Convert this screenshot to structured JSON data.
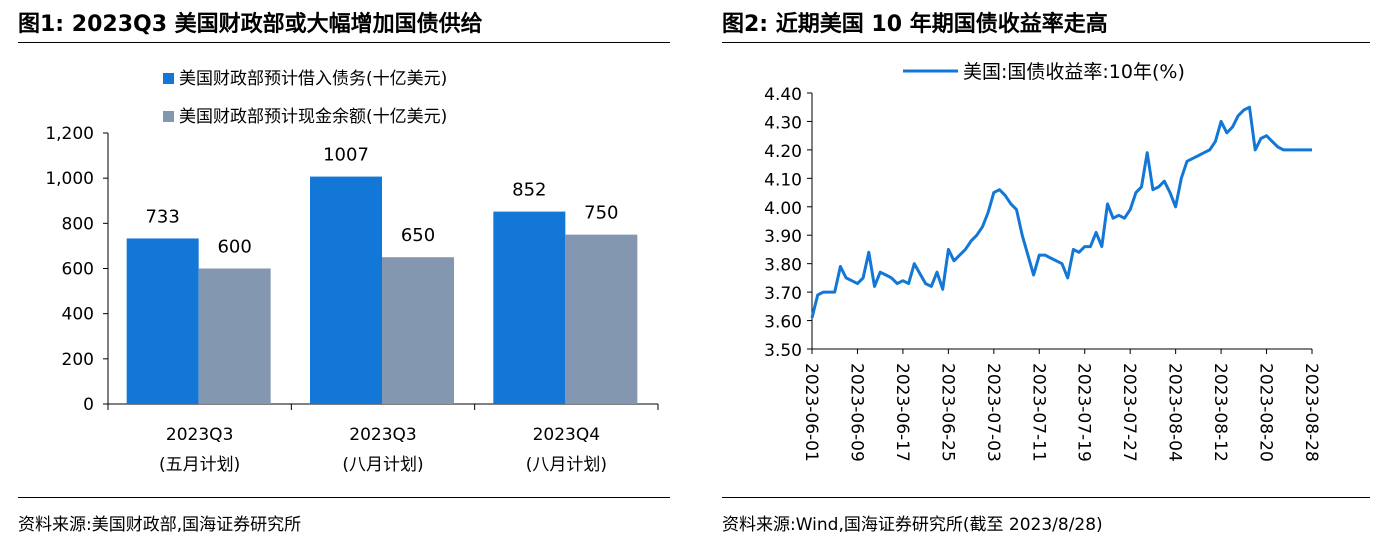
{
  "left": {
    "title": "图1:  2023Q3 美国财政部或大幅增加国债供给",
    "source": "资料来源:美国财政部,国海证券研究所"
  },
  "right": {
    "title": "图2:  近期美国 10 年期国债收益率走高",
    "source": "资料来源:Wind,国海证券研究所(截至 2023/8/28)"
  },
  "colors": {
    "series_a": "#1277D7",
    "series_b": "#8497B0",
    "line": "#1277D7"
  },
  "chart_data": [
    {
      "type": "bar",
      "title": "2023Q3 美国财政部或大幅增加国债供给",
      "categories": [
        {
          "line1": "2023Q3",
          "line2": "(五月计划)"
        },
        {
          "line1": "2023Q3",
          "line2": "(八月计划)"
        },
        {
          "line1": "2023Q4",
          "line2": "(八月计划)"
        }
      ],
      "series": [
        {
          "name": "美国财政部预计借入债务(十亿美元)",
          "values": [
            733,
            1007,
            852
          ],
          "labels": [
            "733",
            "1007",
            "852"
          ]
        },
        {
          "name": "美国财政部预计现金余额(十亿美元)",
          "values": [
            600,
            650,
            750
          ],
          "labels": [
            "600",
            "650",
            "750"
          ]
        }
      ],
      "ylim": [
        0,
        1200
      ],
      "yticks": [
        0,
        200,
        400,
        600,
        800,
        1000,
        1200
      ],
      "ytick_labels": [
        "0",
        "200",
        "400",
        "600",
        "800",
        "1,000",
        "1,200"
      ],
      "legend": "top-left",
      "grid": false
    },
    {
      "type": "line",
      "title": "近期美国 10 年期国债收益率走高",
      "series": [
        {
          "name": "美国:国债收益率:10年(%)",
          "x": [
            0,
            1,
            2,
            4,
            5,
            6,
            7,
            8,
            9,
            10,
            11,
            12,
            13,
            14,
            15,
            16,
            17,
            18,
            20,
            21,
            22,
            23,
            24,
            25,
            26,
            27,
            28,
            29,
            30,
            31,
            32,
            33,
            34,
            35,
            36,
            37,
            38,
            39,
            40,
            41,
            42,
            43,
            44,
            45,
            46,
            47,
            48,
            49,
            50,
            51,
            52,
            53,
            54,
            55,
            56,
            57,
            58,
            59,
            60,
            61,
            62,
            63,
            64,
            65,
            66,
            67,
            68,
            69,
            70,
            71,
            72,
            73,
            74,
            75,
            76,
            77,
            78,
            79,
            80,
            81,
            82,
            83,
            84,
            85,
            86,
            87,
            88
          ],
          "values": [
            3.61,
            3.69,
            3.7,
            3.7,
            3.79,
            3.75,
            3.74,
            3.73,
            3.75,
            3.84,
            3.72,
            3.77,
            3.76,
            3.75,
            3.73,
            3.74,
            3.73,
            3.8,
            3.73,
            3.72,
            3.77,
            3.71,
            3.85,
            3.81,
            3.83,
            3.85,
            3.88,
            3.9,
            3.93,
            3.98,
            4.05,
            4.06,
            4.04,
            4.01,
            3.99,
            3.9,
            3.83,
            3.76,
            3.83,
            3.83,
            3.82,
            3.81,
            3.8,
            3.75,
            3.85,
            3.84,
            3.86,
            3.86,
            3.91,
            3.86,
            4.01,
            3.96,
            3.97,
            3.96,
            3.99,
            4.05,
            4.07,
            4.19,
            4.06,
            4.07,
            4.09,
            4.05,
            4.0,
            4.1,
            4.16,
            4.17,
            4.18,
            4.19,
            4.2,
            4.23,
            4.3,
            4.26,
            4.28,
            4.32,
            4.34,
            4.35,
            4.2,
            4.24,
            4.25,
            4.23,
            4.21,
            4.2,
            4.2,
            4.2,
            4.2,
            4.2,
            4.2
          ]
        }
      ],
      "x_tick_labels": [
        "2023-06-01",
        "2023-06-09",
        "2023-06-17",
        "2023-06-25",
        "2023-07-03",
        "2023-07-11",
        "2023-07-19",
        "2023-07-27",
        "2023-08-04",
        "2023-08-12",
        "2023-08-20",
        "2023-08-28"
      ],
      "ylim": [
        3.5,
        4.4
      ],
      "yticks": [
        3.5,
        3.6,
        3.7,
        3.8,
        3.9,
        4.0,
        4.1,
        4.2,
        4.3,
        4.4
      ],
      "ytick_labels": [
        "3.50",
        "3.60",
        "3.70",
        "3.80",
        "3.90",
        "4.00",
        "4.10",
        "4.20",
        "4.30",
        "4.40"
      ],
      "legend": "top",
      "grid": false
    }
  ]
}
